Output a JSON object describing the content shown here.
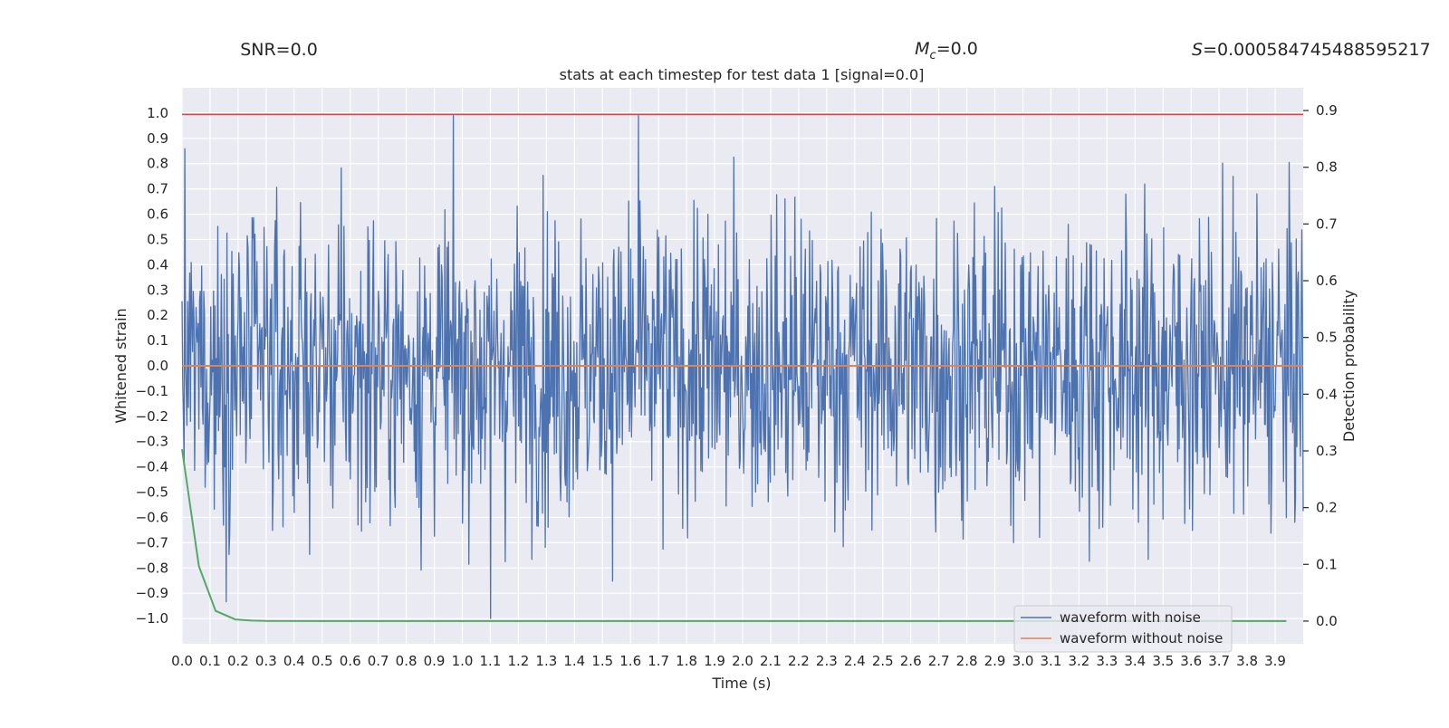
{
  "header": {
    "snr": "SNR=0.0",
    "mc_symbol": "M",
    "mc_sub": "c",
    "mc_value": "=0.0",
    "s_symbol": "S",
    "s_value": "=0.000584745488595217"
  },
  "chart_data": {
    "type": "line",
    "title": "stats at each timestep for test data 1 [signal=0.0]",
    "xlabel": "Time (s)",
    "ylabel": "Whitened strain",
    "ylabel_right": "Detection probability",
    "xlim": [
      0.0,
      4.0
    ],
    "ylim": [
      -1.1,
      1.1
    ],
    "ylim_right": [
      -0.04,
      0.94
    ],
    "x_ticks": [
      0.0,
      0.1,
      0.2,
      0.3,
      0.4,
      0.5,
      0.6,
      0.7,
      0.8,
      0.9,
      1.0,
      1.1,
      1.2,
      1.3,
      1.4,
      1.5,
      1.6,
      1.7,
      1.8,
      1.9,
      2.0,
      2.1,
      2.2,
      2.3,
      2.4,
      2.5,
      2.6,
      2.7,
      2.8,
      2.9,
      3.0,
      3.1,
      3.2,
      3.3,
      3.4,
      3.5,
      3.6,
      3.7,
      3.8,
      3.9
    ],
    "y_ticks": [
      -1.0,
      -0.9,
      -0.8,
      -0.7,
      -0.6,
      -0.5,
      -0.4,
      -0.3,
      -0.2,
      -0.1,
      0.0,
      0.1,
      0.2,
      0.3,
      0.4,
      0.5,
      0.6,
      0.7,
      0.8,
      0.9,
      1.0
    ],
    "y_ticks_right": [
      0.0,
      0.1,
      0.2,
      0.3,
      0.4,
      0.5,
      0.6,
      0.7,
      0.8,
      0.9
    ],
    "grid": true,
    "legend_position": "lower-right",
    "series": [
      {
        "name": "waveform with noise",
        "color": "#4c72b0",
        "axis": "left",
        "kind": "noise",
        "sample_count": 1600,
        "t_end": 4.0,
        "typical_amplitude": 0.3,
        "min": -1.0,
        "max": 0.99
      },
      {
        "name": "waveform without noise",
        "color": "#dd8452",
        "axis": "left",
        "x": [
          0.0,
          4.0
        ],
        "y": [
          0.0,
          0.0
        ]
      },
      {
        "color": "#55a868",
        "axis": "right",
        "x": [
          0.0,
          0.03,
          0.06,
          0.12,
          0.19,
          0.25,
          0.3,
          0.5,
          1.0,
          2.0,
          3.0,
          3.94
        ],
        "y": [
          0.303,
          0.2,
          0.097,
          0.018,
          0.003,
          0.0008,
          0.0003,
          0.0001,
          0.0,
          0.0,
          0.0,
          0.0
        ]
      },
      {
        "color": "#c44e52",
        "axis": "left",
        "kind": "threshold",
        "x": [
          0.0,
          4.0
        ],
        "y": [
          0.995,
          0.995
        ]
      }
    ]
  }
}
